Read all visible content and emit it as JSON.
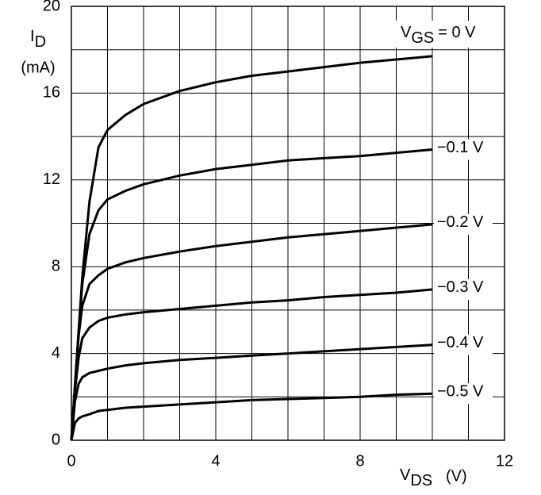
{
  "chart_data": {
    "type": "line",
    "y_label": {
      "symbol": "I",
      "sub": "D",
      "unit": "(mA)"
    },
    "x_label": {
      "symbol": "V",
      "sub": "DS",
      "unit": "(V)"
    },
    "legend_title": {
      "symbol": "V",
      "sub": "GS"
    },
    "x": [
      0,
      0.1,
      0.2,
      0.3,
      0.5,
      0.75,
      1,
      1.5,
      2,
      3,
      4,
      5,
      6,
      7,
      8,
      9,
      10
    ],
    "series": [
      {
        "name": "= 0 V",
        "color": "#000000",
        "values": [
          0,
          2.5,
          5,
          7.5,
          11,
          13.5,
          14.3,
          15.0,
          15.5,
          16.1,
          16.5,
          16.8,
          17.0,
          17.2,
          17.4,
          17.55,
          17.7
        ]
      },
      {
        "name": "−0.1 V",
        "color": "#000000",
        "values": [
          0,
          2.5,
          5,
          7.2,
          9.5,
          10.6,
          11.1,
          11.5,
          11.8,
          12.2,
          12.5,
          12.7,
          12.9,
          13.0,
          13.1,
          13.25,
          13.4
        ]
      },
      {
        "name": "−0.2 V",
        "color": "#000000",
        "values": [
          0,
          2.5,
          4.8,
          6.2,
          7.2,
          7.6,
          7.9,
          8.2,
          8.4,
          8.7,
          8.95,
          9.15,
          9.35,
          9.5,
          9.65,
          9.8,
          9.95
        ]
      },
      {
        "name": "−0.3 V",
        "color": "#000000",
        "values": [
          0,
          2.3,
          3.8,
          4.7,
          5.2,
          5.5,
          5.65,
          5.8,
          5.9,
          6.05,
          6.2,
          6.35,
          6.45,
          6.6,
          6.7,
          6.8,
          6.95
        ]
      },
      {
        "name": "−0.4 V",
        "color": "#000000",
        "values": [
          0,
          1.8,
          2.6,
          2.9,
          3.1,
          3.2,
          3.3,
          3.45,
          3.55,
          3.7,
          3.8,
          3.9,
          4.0,
          4.1,
          4.2,
          4.3,
          4.4
        ]
      },
      {
        "name": "−0.5 V",
        "color": "#000000",
        "values": [
          0,
          0.8,
          1.0,
          1.1,
          1.2,
          1.35,
          1.4,
          1.5,
          1.55,
          1.65,
          1.75,
          1.85,
          1.9,
          1.95,
          2.0,
          2.1,
          2.15
        ]
      }
    ],
    "xlim": [
      0,
      12
    ],
    "ylim": [
      0,
      20
    ],
    "xticks": [
      0,
      4,
      8,
      12
    ],
    "yticks": [
      0,
      4,
      8,
      12,
      16,
      20
    ],
    "xgrid": [
      1,
      2,
      3,
      4,
      5,
      6,
      7,
      8,
      9,
      10,
      11
    ],
    "ygrid": [
      2,
      4,
      6,
      8,
      10,
      12,
      14,
      16,
      18
    ]
  }
}
